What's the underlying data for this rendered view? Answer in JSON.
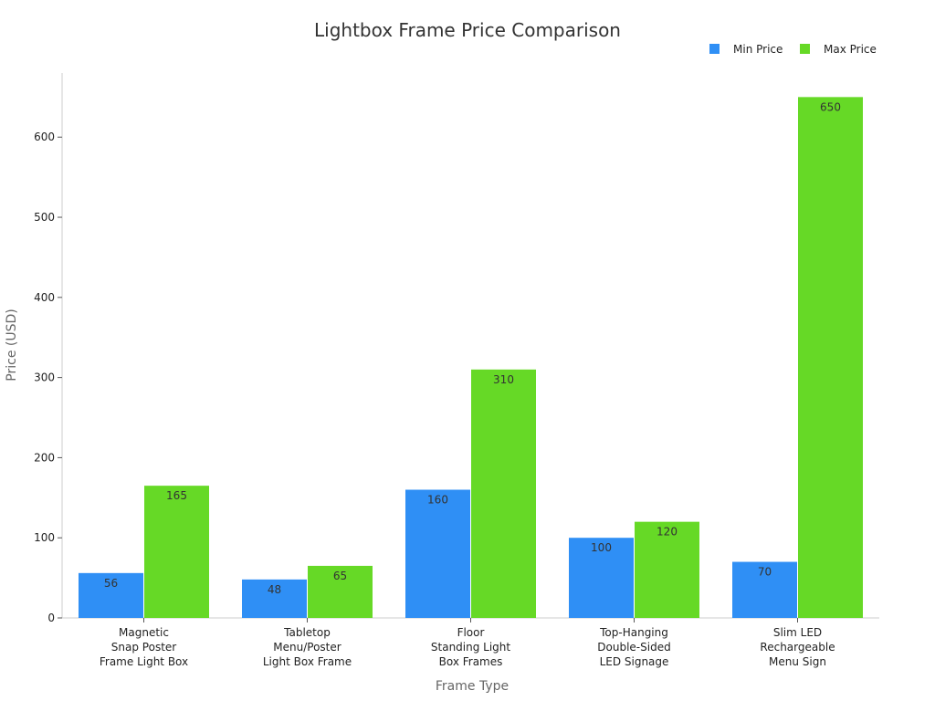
{
  "chart_data": {
    "type": "bar",
    "title": "Lightbox Frame Price Comparison",
    "xlabel": "Frame Type",
    "ylabel": "Price (USD)",
    "ylim": [
      0,
      680
    ],
    "yticks": [
      "0",
      "100",
      "200",
      "300",
      "400",
      "500",
      "600"
    ],
    "grid": false,
    "legend_position": "top-right",
    "categories": [
      [
        "Magnetic",
        "Snap Poster",
        "Frame Light Box"
      ],
      [
        "Tabletop",
        "Menu/Poster",
        "Light Box Frame"
      ],
      [
        "Floor",
        "Standing Light",
        "Box Frames"
      ],
      [
        "Top-Hanging",
        "Double-Sided",
        "LED Signage"
      ],
      [
        "Slim LED",
        "Rechargeable",
        "Menu Sign"
      ]
    ],
    "series": [
      {
        "name": "Min Price",
        "color": "#2f8ff5",
        "values": [
          56,
          48,
          160,
          100,
          70
        ]
      },
      {
        "name": "Max Price",
        "color": "#66d926",
        "values": [
          165,
          65,
          310,
          120,
          650
        ]
      }
    ]
  }
}
